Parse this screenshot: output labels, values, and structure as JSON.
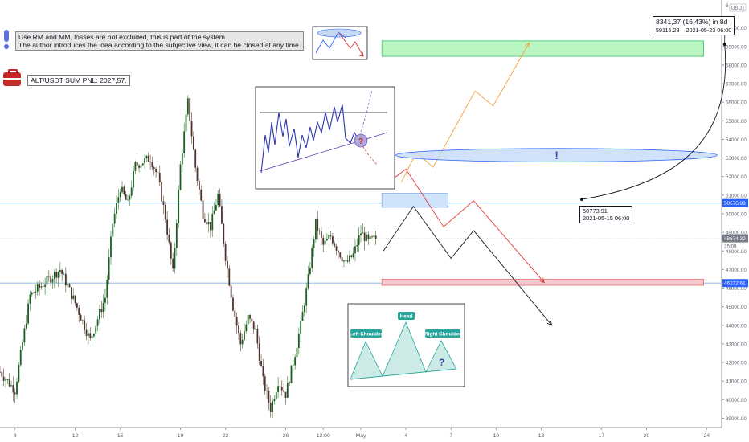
{
  "notes": {
    "line1": "Use RM and MM, losses are not excluded, this is part of the system.",
    "line2": "The author introduces the idea according to the subjective view, it can be closed at any time."
  },
  "pnl": {
    "label": "ALT/USDT SUM PNL: 2027,57."
  },
  "callouts": {
    "start_price": "50773.91",
    "start_date": "2021-05-15 06:00",
    "gain_text": "8341,37 (16,43%) in 8d",
    "end_price": "59115.28",
    "end_date": "2021-05-23  06:00"
  },
  "pattern_labels": {
    "left": "Left Shoulder",
    "head": "Head",
    "right": "Right Shoulder",
    "question": "?"
  },
  "symbols": {
    "exclamation": "!",
    "question": "?"
  },
  "chart_data": {
    "type": "candlestick",
    "ylim": [
      38500,
      61500
    ],
    "y_ticks": [
      39000,
      40000,
      41000,
      42000,
      43000,
      44000,
      45000,
      46000,
      47000,
      48000,
      49000,
      50000,
      51000,
      52000,
      53000,
      54000,
      55000,
      56000,
      57000,
      58000,
      59000,
      60000
    ],
    "y_tick_labels": [
      "39000.00",
      "40000.00",
      "41000.00",
      "42000.00",
      "43000.00",
      "44000.00",
      "45000.00",
      "46000.00",
      "47000.00",
      "48000.00",
      "49000.00",
      "50000.00",
      "51000.00",
      "52000.00",
      "53000.00",
      "54000.00",
      "55000.00",
      "56000.00",
      "57000.00",
      "58000.00",
      "59000.00",
      "60000.00"
    ],
    "y_top_label": "6",
    "currency_label": "USDT",
    "x_ticks": [
      "8",
      "12",
      "15",
      "19",
      "22",
      "26",
      "12:00",
      "May",
      "4",
      "7",
      "10",
      "13",
      "17",
      "20",
      "24"
    ],
    "x_tick_days": [
      8,
      12,
      15,
      19,
      22,
      26,
      28.5,
      31,
      34,
      37,
      40,
      43,
      47,
      50,
      54
    ],
    "x_range_days": [
      7,
      55
    ],
    "price_labels": [
      {
        "value": 50575.93,
        "text": "50575.93",
        "color": "#2962ff"
      },
      {
        "value": 48674.3,
        "text": "48674.30",
        "color": "#787b86"
      },
      {
        "value": 46272.61,
        "text": "46272.61",
        "color": "#2962ff"
      }
    ],
    "countdown": "25:09",
    "horizontal_lines": [
      50575.93,
      46272.61
    ],
    "price_path": [
      [
        7,
        41500
      ],
      [
        8,
        40500
      ],
      [
        9,
        45600
      ],
      [
        10,
        46300
      ],
      [
        11,
        47000
      ],
      [
        12,
        45200
      ],
      [
        13,
        43200
      ],
      [
        14,
        45500
      ],
      [
        14.5,
        49500
      ],
      [
        15,
        51400
      ],
      [
        15.5,
        50500
      ],
      [
        16,
        52600
      ],
      [
        17,
        53000
      ],
      [
        17.5,
        52000
      ],
      [
        18,
        49800
      ],
      [
        18.5,
        46800
      ],
      [
        19,
        52600
      ],
      [
        19.5,
        56000
      ],
      [
        20,
        52500
      ],
      [
        20.5,
        50000
      ],
      [
        21,
        49300
      ],
      [
        21.5,
        51000
      ],
      [
        22,
        47700
      ],
      [
        22.5,
        45000
      ],
      [
        23,
        43000
      ],
      [
        23.5,
        44400
      ],
      [
        24,
        43700
      ],
      [
        24.5,
        41000
      ],
      [
        25,
        39500
      ],
      [
        25.5,
        41000
      ],
      [
        26,
        40300
      ],
      [
        26.5,
        42000
      ],
      [
        27,
        44000
      ],
      [
        27.5,
        46500
      ],
      [
        28,
        49500
      ],
      [
        28.5,
        48300
      ],
      [
        29,
        48800
      ],
      [
        29.5,
        48000
      ],
      [
        30,
        47300
      ],
      [
        30.5,
        47800
      ],
      [
        31,
        49000
      ],
      [
        31.5,
        48500
      ],
      [
        32,
        48674
      ]
    ],
    "projections": [
      {
        "name": "orange",
        "color": "#f5a13c",
        "points": [
          [
            33.7,
            51700
          ],
          [
            34.7,
            53300
          ],
          [
            35.8,
            52500
          ],
          [
            38.6,
            56600
          ],
          [
            39.8,
            55800
          ],
          [
            42.2,
            59200
          ]
        ]
      },
      {
        "name": "red",
        "color": "#e53935",
        "points": [
          [
            33,
            51800
          ],
          [
            34,
            52400
          ],
          [
            36.5,
            49300
          ],
          [
            38.5,
            50700
          ],
          [
            43.2,
            46300
          ]
        ]
      },
      {
        "name": "black",
        "color": "#131722",
        "points": [
          [
            32.5,
            48000
          ],
          [
            34.5,
            50400
          ],
          [
            37,
            47600
          ],
          [
            38.5,
            49100
          ],
          [
            43.7,
            44000
          ]
        ]
      }
    ],
    "zones": [
      {
        "name": "green-target",
        "color": "#b9f5c1",
        "border": "#36c46b",
        "x": [
          32.4,
          53.8
        ],
        "y": [
          58470,
          59300
        ]
      },
      {
        "name": "red-stop",
        "color": "#f8c8ce",
        "border": "#e57373",
        "x": [
          32.4,
          53.8
        ],
        "y": [
          46150,
          46480
        ]
      },
      {
        "name": "blue-entry",
        "color": "#cfe3fb",
        "border": "#7fa9e5",
        "x": [
          32.4,
          36.8
        ],
        "y": [
          50350,
          51100
        ]
      }
    ],
    "measure": {
      "from": [
        45.7,
        50773.91
      ],
      "to": [
        55.2,
        59115.28
      ]
    },
    "ellipse": {
      "center": [
        44,
        53150
      ],
      "rx_days": 10.7,
      "ry_price": 360
    }
  }
}
